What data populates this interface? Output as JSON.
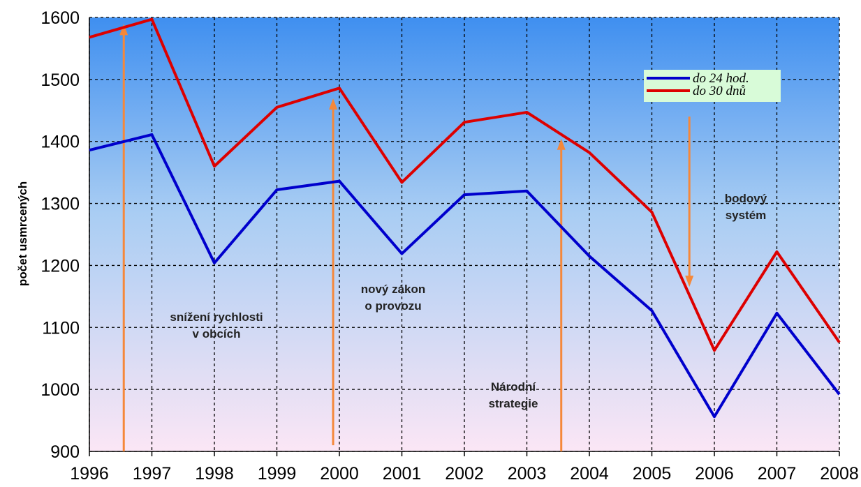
{
  "chart_data": {
    "type": "line",
    "title": "",
    "xlabel": "",
    "ylabel": "počet usmrcených",
    "x": [
      "1996",
      "1997",
      "1998",
      "1999",
      "2000",
      "2001",
      "2002",
      "2003",
      "2004",
      "2005",
      "2006",
      "2007",
      "2008"
    ],
    "xlim": [
      1996,
      2008
    ],
    "ylim": [
      900,
      1600
    ],
    "yticks": [
      "900",
      "1000",
      "1100",
      "1200",
      "1300",
      "1400",
      "1500",
      "1600"
    ],
    "grid": true,
    "legend_position": "top-right",
    "series": [
      {
        "name": "do 24 hod.",
        "color": "#0000cc",
        "values": [
          1386,
          1411,
          1204,
          1322,
          1336,
          1219,
          1314,
          1320,
          1215,
          1127,
          956,
          1123,
          992
        ]
      },
      {
        "name": "do 30 dnů",
        "color": "#dd0000",
        "values": [
          1568,
          1597,
          1360,
          1455,
          1486,
          1334,
          1431,
          1447,
          1382,
          1286,
          1063,
          1222,
          1076
        ]
      }
    ],
    "annotations": [
      {
        "lines": [
          "snížení rychlosti",
          "v obcích"
        ],
        "arrow_x": 1996.55,
        "arrow_from": 900,
        "arrow_to": 1585,
        "direction": "up"
      },
      {
        "lines": [
          "nový zákon",
          "o provozu"
        ],
        "arrow_x": 1999.9,
        "arrow_from": 910,
        "arrow_to": 1465,
        "direction": "up"
      },
      {
        "lines": [
          "Národní",
          "strategie"
        ],
        "arrow_x": 2003.55,
        "arrow_from": 900,
        "arrow_to": 1400,
        "direction": "up"
      },
      {
        "lines": [
          "bodový",
          "systém"
        ],
        "arrow_x": 2005.6,
        "arrow_from": 1440,
        "arrow_to": 1170,
        "direction": "down"
      }
    ],
    "colors": {
      "arrow": "#f5883a",
      "bg_top": "#3f8ff0",
      "bg_bottom": "#fbe6f5",
      "legend_bg": "#d8fbd8"
    }
  }
}
